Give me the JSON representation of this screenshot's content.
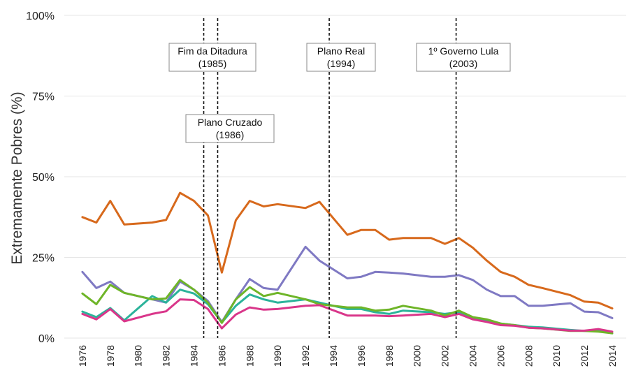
{
  "chart_data": {
    "type": "line",
    "ylabel": "Extremamente Pobres (%)",
    "ylim": [
      0,
      100
    ],
    "y_ticks": [
      "0%",
      "25%",
      "50%",
      "75%",
      "100%"
    ],
    "grid": true,
    "x_ticks": [
      "1976",
      "1978",
      "1980",
      "1982",
      "1984",
      "1986",
      "1988",
      "1990",
      "1992",
      "1994",
      "1996",
      "1998",
      "2000",
      "2002",
      "2004",
      "2006",
      "2008",
      "2010",
      "2012",
      "2014"
    ],
    "x": [
      1976,
      1977,
      1978,
      1979,
      1981,
      1982,
      1983,
      1984,
      1985,
      1986,
      1987,
      1988,
      1989,
      1990,
      1992,
      1993,
      1995,
      1996,
      1997,
      1998,
      1999,
      2001,
      2002,
      2003,
      2004,
      2005,
      2006,
      2007,
      2008,
      2009,
      2011,
      2012,
      2013,
      2014
    ],
    "series": [
      {
        "color": "#d7691c",
        "values": [
          37.5,
          35.8,
          42.5,
          35.2,
          35.8,
          36.6,
          45.0,
          42.5,
          38.0,
          20.3,
          36.5,
          42.5,
          40.8,
          41.5,
          40.3,
          42.2,
          32.0,
          33.5,
          33.5,
          30.5,
          31.0,
          31.0,
          29.2,
          31.0,
          28.0,
          24.0,
          20.5,
          19.0,
          16.5,
          15.5,
          13.3,
          11.3,
          11.0,
          9.2
        ]
      },
      {
        "color": "#7f79c3",
        "values": [
          20.5,
          15.5,
          17.5,
          14.0,
          12.0,
          11.0,
          17.5,
          15.0,
          11.5,
          5.0,
          12.0,
          18.3,
          15.5,
          15.0,
          28.3,
          24.0,
          18.5,
          19.0,
          20.5,
          20.3,
          20.0,
          19.0,
          19.0,
          19.5,
          18.0,
          15.0,
          13.0,
          13.0,
          10.0,
          10.0,
          10.8,
          8.2,
          8.0,
          6.2
        ]
      },
      {
        "color": "#2bb39a",
        "values": [
          8.2,
          6.5,
          9.3,
          5.5,
          13.0,
          11.0,
          15.0,
          13.8,
          10.5,
          4.8,
          10.0,
          13.5,
          12.0,
          11.0,
          12.0,
          11.0,
          9.0,
          9.0,
          8.0,
          7.5,
          8.5,
          8.0,
          7.5,
          8.0,
          6.0,
          5.5,
          4.5,
          4.0,
          3.5,
          3.3,
          2.5,
          2.2,
          2.3,
          1.5
        ]
      },
      {
        "color": "#6eb528",
        "values": [
          13.8,
          10.5,
          16.5,
          14.0,
          12.0,
          12.3,
          18.0,
          15.0,
          11.0,
          4.7,
          12.0,
          15.8,
          13.0,
          14.0,
          12.0,
          10.5,
          9.5,
          9.5,
          8.5,
          8.8,
          10.0,
          8.5,
          7.0,
          8.5,
          6.5,
          5.8,
          4.5,
          4.0,
          3.2,
          3.0,
          2.2,
          2.2,
          2.0,
          1.5
        ]
      },
      {
        "color": "#d9368a",
        "values": [
          7.5,
          5.8,
          9.0,
          5.2,
          7.5,
          8.3,
          12.0,
          11.8,
          9.0,
          3.0,
          7.3,
          9.5,
          8.8,
          9.0,
          10.0,
          10.2,
          7.0,
          7.0,
          7.0,
          6.8,
          7.0,
          7.5,
          6.5,
          7.5,
          5.8,
          5.0,
          4.0,
          3.8,
          3.2,
          3.0,
          2.3,
          2.3,
          2.8,
          2.0
        ]
      }
    ],
    "annotations": [
      {
        "line_x": 1984.7,
        "lines": [
          "Fim da Ditadura",
          "(1985)"
        ]
      },
      {
        "line_x": 1985.7,
        "lines": [
          "Plano Cruzado",
          "(1986)"
        ]
      },
      {
        "line_x": 1993.7,
        "lines": [
          "Plano Real",
          "(1994)"
        ]
      },
      {
        "line_x": 2002.8,
        "lines": [
          "1º Governo Lula",
          "(2003)"
        ]
      }
    ]
  }
}
